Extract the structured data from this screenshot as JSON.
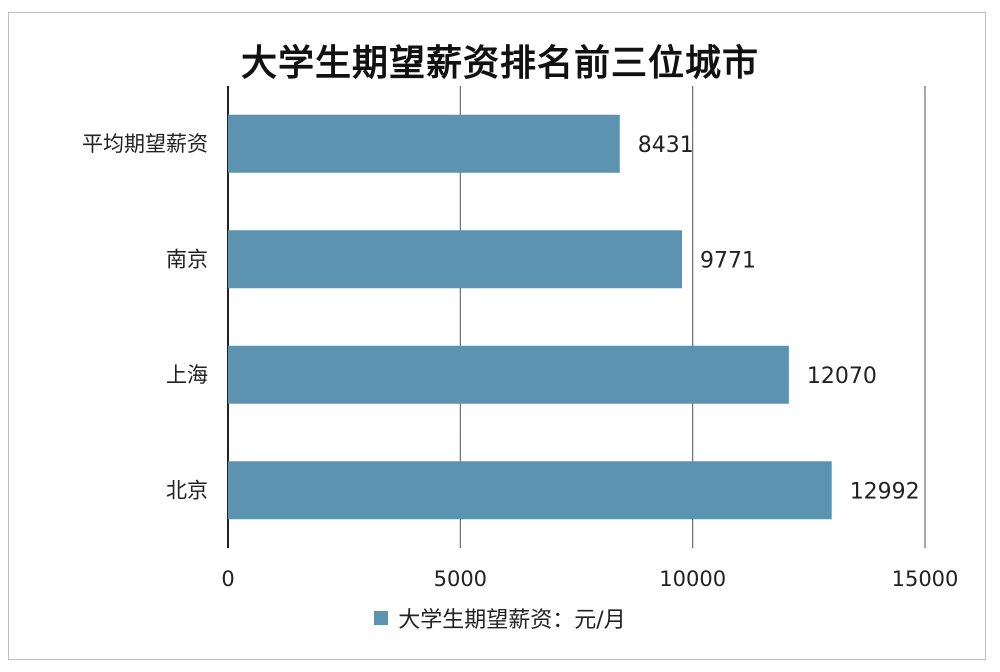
{
  "chart_data": {
    "type": "bar",
    "orientation": "horizontal",
    "title": "大学生期望薪资排名前三位城市",
    "categories": [
      "平均期望薪资",
      "南京",
      "上海",
      "北京"
    ],
    "series": [
      {
        "name": "大学生期望薪资：元/月",
        "values": [
          8431,
          9771,
          12070,
          12992
        ],
        "color": "#5b93b1"
      }
    ],
    "data_labels": [
      "8431",
      "9771",
      "12070",
      "12992"
    ],
    "xlim": [
      0,
      15000
    ],
    "x_ticks": [
      0,
      5000,
      10000,
      15000
    ],
    "x_tick_labels": [
      "0",
      "5000",
      "10000",
      "15000"
    ],
    "grid": "vertical",
    "legend_position": "bottom"
  }
}
